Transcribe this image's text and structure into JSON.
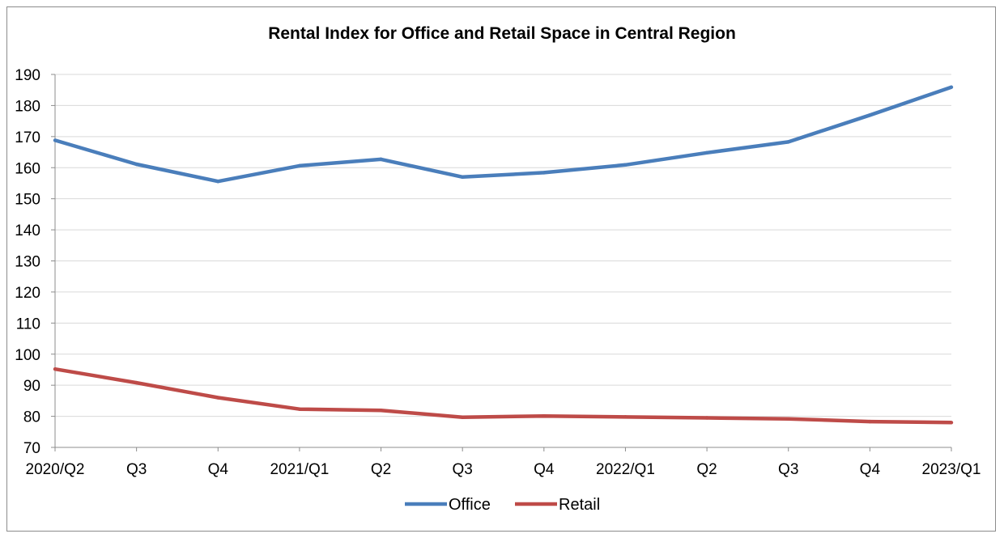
{
  "chart_data": {
    "type": "line",
    "title": "Rental Index for Office and Retail Space in Central Region",
    "xlabel": "",
    "ylabel": "",
    "categories": [
      "2020/Q2",
      "Q3",
      "Q4",
      "2021/Q1",
      "Q2",
      "Q3",
      "Q4",
      "2022/Q1",
      "Q2",
      "Q3",
      "Q4",
      "2023/Q1"
    ],
    "ylim": [
      70,
      190
    ],
    "yticks": [
      70,
      80,
      90,
      100,
      110,
      120,
      130,
      140,
      150,
      160,
      170,
      180,
      190
    ],
    "grid": true,
    "legend_position": "bottom",
    "series": [
      {
        "name": "Office",
        "color": "#4a7ebb",
        "values": [
          168.8,
          161.1,
          155.6,
          160.6,
          162.7,
          157.0,
          158.4,
          160.9,
          164.8,
          168.3,
          176.9,
          185.9
        ]
      },
      {
        "name": "Retail",
        "color": "#be4b48",
        "values": [
          95.2,
          90.8,
          86.0,
          82.3,
          81.9,
          79.7,
          80.1,
          79.8,
          79.5,
          79.2,
          78.3,
          78.0
        ]
      }
    ]
  }
}
